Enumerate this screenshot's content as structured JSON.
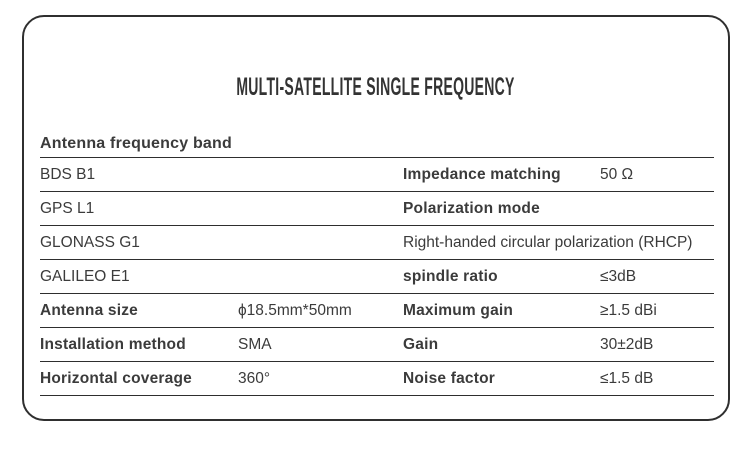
{
  "title": "MULTI-SATELLITE SINGLE FREQUENCY",
  "colors": {
    "text": "#3b3b3b",
    "rule_line": "#2e2e2e",
    "card_border": "#2f2f2f",
    "background": "#ffffff"
  },
  "table": {
    "header": "Antenna frequency band",
    "rows": [
      {
        "band": "BDS B1",
        "label": "Impedance matching",
        "value": "50 Ω"
      },
      {
        "band": "GPS L1",
        "label": "Polarization mode",
        "value": ""
      },
      {
        "band": "GLONASS G1",
        "wide_value": "Right-handed circular polarization (RHCP)"
      },
      {
        "band": "GALILEO E1",
        "label": "spindle ratio",
        "value": "≤3dB"
      },
      {
        "label_left": "Antenna size",
        "value_left": "ϕ18.5mm*50mm",
        "label": "Maximum gain",
        "value": "≥1.5 dBi"
      },
      {
        "label_left": "Installation method",
        "value_left": "SMA",
        "label": "Gain",
        "value": "30±2dB"
      },
      {
        "label_left": "Horizontal coverage",
        "value_left": "360°",
        "label": "Noise factor",
        "value": "≤1.5 dB"
      }
    ]
  }
}
